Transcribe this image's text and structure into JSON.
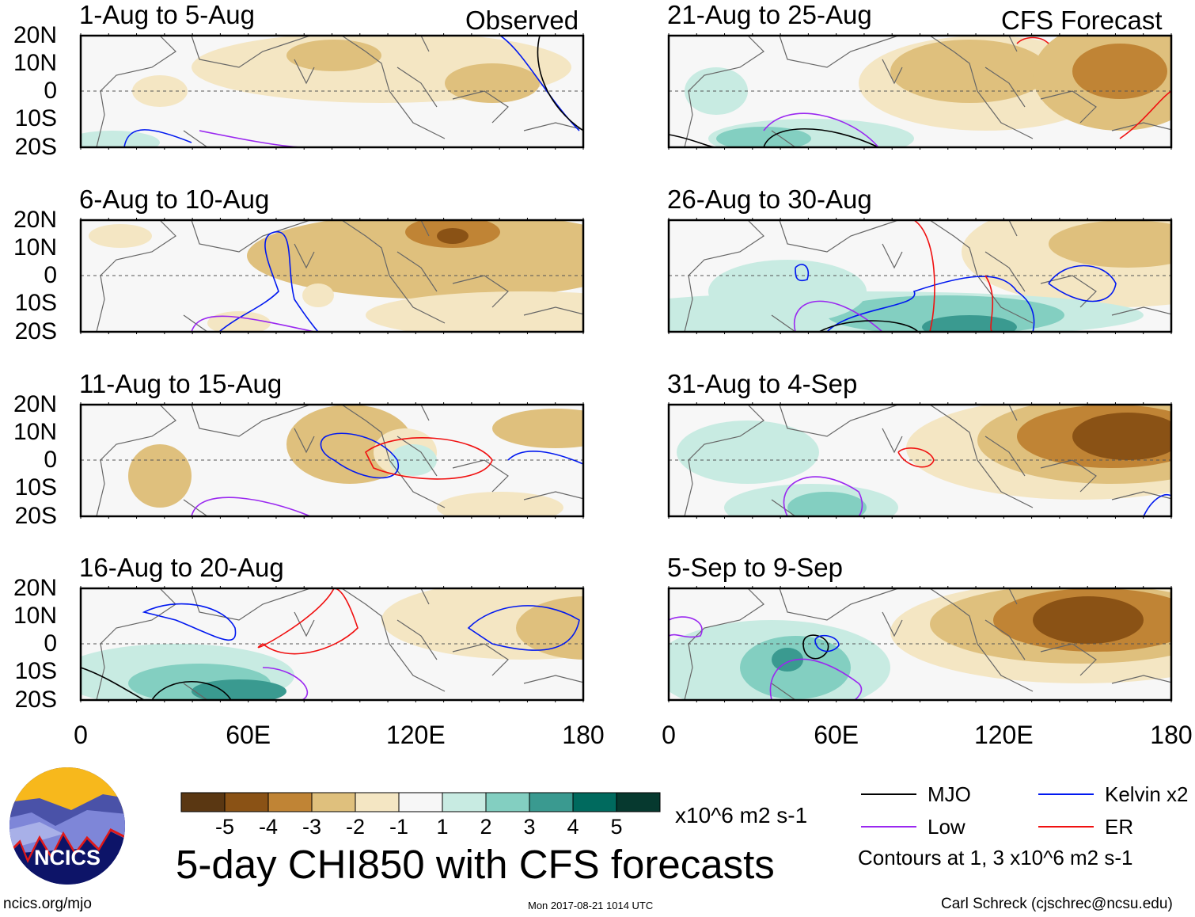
{
  "header": {
    "observed_label": "Observed",
    "forecast_label": "CFS Forecast"
  },
  "panels": [
    {
      "title": "1-Aug to 5-Aug",
      "type": "observed"
    },
    {
      "title": "6-Aug to 10-Aug",
      "type": "observed"
    },
    {
      "title": "11-Aug to 15-Aug",
      "type": "observed"
    },
    {
      "title": "16-Aug to 20-Aug",
      "type": "observed"
    },
    {
      "title": "21-Aug to 25-Aug",
      "type": "forecast"
    },
    {
      "title": "26-Aug to 30-Aug",
      "type": "forecast"
    },
    {
      "title": "31-Aug to 4-Sep",
      "type": "forecast"
    },
    {
      "title": "5-Sep to 9-Sep",
      "type": "forecast"
    }
  ],
  "chart_data": {
    "type": "heatmap",
    "title": "5-day CHI850 with CFS forecasts",
    "variable": "CHI850",
    "units": "x10^6 m2 s-1",
    "yticks": [
      "20N",
      "10N",
      "0",
      "10S",
      "20S"
    ],
    "xticks": [
      "0",
      "60E",
      "120E",
      "180"
    ],
    "lon_range": [
      0,
      180
    ],
    "lat_range": [
      -20,
      20
    ],
    "colorbar": {
      "levels": [
        "-5",
        "-4",
        "-3",
        "-2",
        "-1",
        "1",
        "2",
        "3",
        "4",
        "5"
      ],
      "colors": [
        "#5a3712",
        "#8a5215",
        "#c08435",
        "#dfc07d",
        "#f4e6c3",
        "#f7f7f7",
        "#c8ebe2",
        "#83cfc1",
        "#3a9a90",
        "#006a5e",
        "#06392f"
      ]
    },
    "contours": {
      "legend": [
        {
          "name": "MJO",
          "color": "#000000"
        },
        {
          "name": "Kelvin x2",
          "color": "#0018f0"
        },
        {
          "name": "Low",
          "color": "#9a28f0"
        },
        {
          "name": "ER",
          "color": "#f01010"
        }
      ],
      "note": "Contours at 1, 3 x10^6 m2 s-1"
    }
  },
  "footer": {
    "logo_text": "NCICS",
    "url": "ncics.org/mjo",
    "timestamp": "Mon 2017-08-21 1014 UTC",
    "credit": "Carl Schreck (cjschrec@ncsu.edu)"
  }
}
